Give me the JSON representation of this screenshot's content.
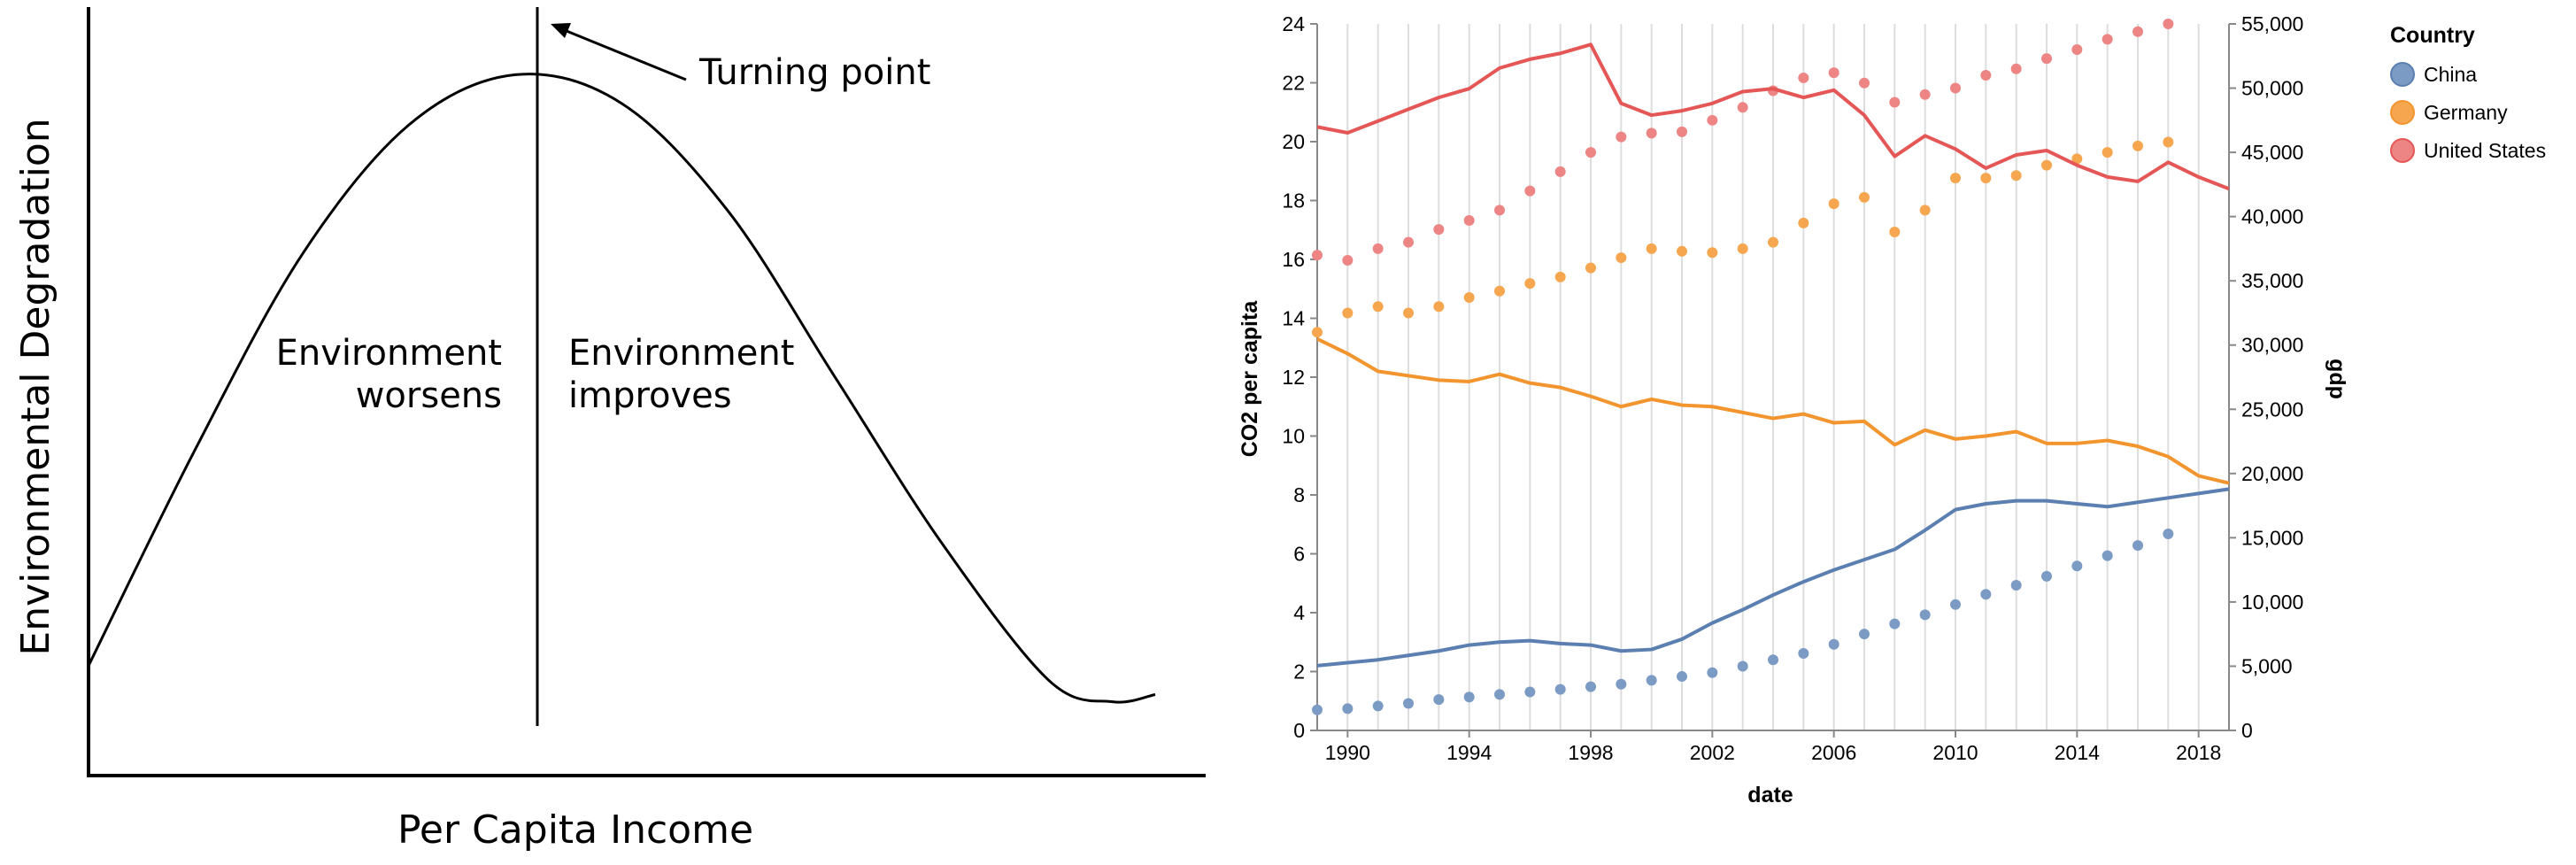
{
  "chart_data": [
    {
      "type": "line",
      "xlabel": "Per Capita Income",
      "ylabel": "Environmental Degradation",
      "annotations": {
        "turning_point": "Turning point",
        "left_region": [
          "Environment",
          "worsens"
        ],
        "right_region": [
          "Environment",
          "improves"
        ]
      },
      "series": [
        {
          "x": [
            0,
            0.1,
            0.2,
            0.3,
            0.4,
            0.5,
            0.6,
            0.7,
            0.8,
            0.9,
            0.96,
            1.0
          ],
          "y": [
            0.15,
            0.45,
            0.72,
            0.9,
            0.97,
            0.93,
            0.78,
            0.55,
            0.32,
            0.13,
            0.1,
            0.11
          ]
        }
      ]
    },
    {
      "type": "line",
      "xlabel": "date",
      "ylabel": "CO2 per capita",
      "y2label": "gdp",
      "xlim": [
        1989,
        2019
      ],
      "ylim": [
        0,
        24
      ],
      "y2lim": [
        0,
        55000
      ],
      "x_ticks": [
        "1990",
        "1994",
        "1998",
        "2002",
        "2006",
        "2010",
        "2014",
        "2018"
      ],
      "y_ticks": [
        "0",
        "2",
        "4",
        "6",
        "8",
        "10",
        "12",
        "14",
        "16",
        "18",
        "20",
        "22",
        "24"
      ],
      "y2_ticks": [
        "0",
        "5,000",
        "10,000",
        "15,000",
        "20,000",
        "25,000",
        "30,000",
        "35,000",
        "40,000",
        "45,000",
        "50,000",
        "55,000"
      ],
      "grid": "vertical",
      "legend": {
        "title": "Country",
        "position": "right"
      },
      "years": [
        1989,
        1990,
        1991,
        1992,
        1993,
        1994,
        1995,
        1996,
        1997,
        1998,
        1999,
        2000,
        2001,
        2002,
        2003,
        2004,
        2005,
        2006,
        2007,
        2008,
        2009,
        2010,
        2011,
        2012,
        2013,
        2014,
        2015,
        2016,
        2017,
        2018,
        2019
      ],
      "gdp_years": [
        1989,
        1990,
        1991,
        1992,
        1993,
        1994,
        1995,
        1996,
        1997,
        1998,
        1999,
        2000,
        2001,
        2002,
        2003,
        2004,
        2005,
        2006,
        2007,
        2008,
        2009,
        2010,
        2011,
        2012,
        2013,
        2014,
        2015,
        2016,
        2017
      ],
      "series": [
        {
          "name": "China",
          "color": "#5b7fb0",
          "dot_color": "#7b9ac4",
          "co2": [
            2.2,
            2.3,
            2.4,
            2.55,
            2.7,
            2.9,
            3.0,
            3.05,
            2.95,
            2.9,
            2.7,
            2.75,
            3.1,
            3.65,
            4.1,
            4.6,
            5.05,
            5.45,
            5.8,
            6.15,
            6.8,
            7.5,
            7.7,
            7.8,
            7.8,
            7.7,
            7.6,
            7.75,
            7.9,
            8.05,
            8.2
          ],
          "gdp": [
            1600,
            1700,
            1900,
            2100,
            2400,
            2600,
            2800,
            3000,
            3200,
            3400,
            3600,
            3900,
            4200,
            4500,
            5000,
            5500,
            6000,
            6700,
            7500,
            8300,
            9000,
            9800,
            10600,
            11300,
            12000,
            12800,
            13600,
            14400,
            15300
          ]
        },
        {
          "name": "Germany",
          "color": "#f2952f",
          "dot_color": "#f5a64e",
          "co2": [
            13.3,
            12.8,
            12.2,
            12.05,
            11.9,
            11.85,
            12.1,
            11.8,
            11.65,
            11.35,
            11.0,
            11.25,
            11.05,
            11.0,
            10.8,
            10.6,
            10.75,
            10.45,
            10.5,
            9.7,
            10.2,
            9.9,
            10.0,
            10.15,
            9.75,
            9.75,
            9.85,
            9.65,
            9.3,
            8.65,
            8.4
          ],
          "gdp": [
            31000,
            32500,
            33000,
            32500,
            33000,
            33700,
            34200,
            34800,
            35300,
            36000,
            36800,
            37500,
            37300,
            37200,
            37500,
            38000,
            39500,
            41000,
            41500,
            38800,
            40500,
            43000,
            43000,
            43200,
            44000,
            44500,
            45000,
            45500,
            45800
          ]
        },
        {
          "name": "United States",
          "color": "#e45756",
          "dot_color": "#ec8584",
          "co2": [
            20.5,
            20.3,
            20.7,
            21.1,
            21.5,
            21.8,
            22.5,
            22.8,
            23.0,
            23.3,
            21.3,
            20.9,
            21.05,
            21.3,
            21.7,
            21.8,
            21.5,
            21.75,
            20.9,
            19.5,
            20.2,
            19.75,
            19.1,
            19.55,
            19.7,
            19.2,
            18.8,
            18.65,
            19.3,
            18.8,
            18.4
          ],
          "gdp": [
            37000,
            36600,
            37500,
            38000,
            39000,
            39700,
            40500,
            42000,
            43500,
            45000,
            46200,
            46500,
            46600,
            47500,
            48500,
            49800,
            50800,
            51200,
            50400,
            48900,
            49500,
            50000,
            51000,
            51500,
            52300,
            53000,
            53800,
            54400,
            55000
          ]
        }
      ]
    }
  ]
}
